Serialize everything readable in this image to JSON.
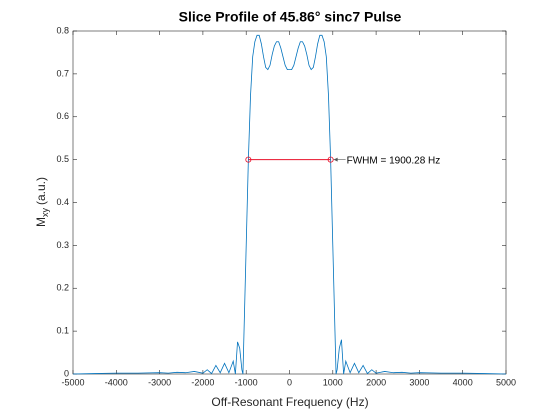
{
  "chart_data": {
    "type": "line",
    "title": "Slice Profile of 45.86° sinc7 Pulse",
    "xlabel": "Off-Resonant Frequency (Hz)",
    "ylabel_base": "M",
    "ylabel_subscript": "xy",
    "ylabel_unit": "(a.u.)",
    "xlim": [
      -5000,
      5000
    ],
    "ylim": [
      0,
      0.8
    ],
    "xticks": [
      -5000,
      -4000,
      -3000,
      -2000,
      -1000,
      0,
      1000,
      2000,
      3000,
      4000,
      5000
    ],
    "yticks": [
      0,
      0.1,
      0.2,
      0.3,
      0.4,
      0.5,
      0.6,
      0.7,
      0.8
    ],
    "grid": false,
    "series": [
      {
        "color": "#0072bd",
        "x": [
          -5000,
          -4500,
          -4000,
          -3500,
          -3000,
          -2800,
          -2600,
          -2400,
          -2200,
          -2000,
          -1900,
          -1800,
          -1700,
          -1600,
          -1500,
          -1400,
          -1300,
          -1250,
          -1200,
          -1150,
          -1100,
          -1075,
          -1050,
          -1000,
          -950,
          -900,
          -850,
          -800,
          -750,
          -700,
          -650,
          -600,
          -550,
          -500,
          -450,
          -400,
          -350,
          -300,
          -250,
          -200,
          -150,
          -100,
          -50,
          0,
          50,
          100,
          150,
          200,
          250,
          300,
          350,
          400,
          450,
          500,
          550,
          600,
          650,
          700,
          750,
          800,
          850,
          900,
          950,
          1000,
          1050,
          1075,
          1100,
          1150,
          1200,
          1250,
          1300,
          1400,
          1500,
          1600,
          1700,
          1800,
          1900,
          2000,
          2200,
          2400,
          2600,
          2800,
          3000,
          3500,
          4000,
          4500,
          5000
        ],
        "values": [
          0,
          0.001,
          0.002,
          0.002,
          0.003,
          0.002,
          0.004,
          0.003,
          0.006,
          0.002,
          0.01,
          0.001,
          0.02,
          0.003,
          0.025,
          0.003,
          0.03,
          0,
          0.075,
          0.06,
          0.01,
          0,
          0.1,
          0.3,
          0.5,
          0.65,
          0.74,
          0.775,
          0.79,
          0.79,
          0.77,
          0.74,
          0.715,
          0.71,
          0.72,
          0.745,
          0.765,
          0.775,
          0.775,
          0.76,
          0.74,
          0.72,
          0.71,
          0.71,
          0.71,
          0.72,
          0.74,
          0.76,
          0.775,
          0.775,
          0.765,
          0.745,
          0.72,
          0.71,
          0.715,
          0.74,
          0.77,
          0.79,
          0.79,
          0.775,
          0.74,
          0.65,
          0.5,
          0.3,
          0.1,
          0,
          0.01,
          0.06,
          0.08,
          0,
          0.03,
          0.003,
          0.025,
          0.003,
          0.02,
          0.001,
          0.01,
          0.002,
          0.006,
          0.003,
          0.004,
          0.002,
          0.003,
          0.002,
          0.002,
          0.001,
          0
        ]
      }
    ],
    "fwhm": {
      "x": [
        -950,
        950
      ],
      "y": 0.5,
      "color": "#e8102a",
      "label": "FWHM = 1900.28 Hz"
    }
  }
}
